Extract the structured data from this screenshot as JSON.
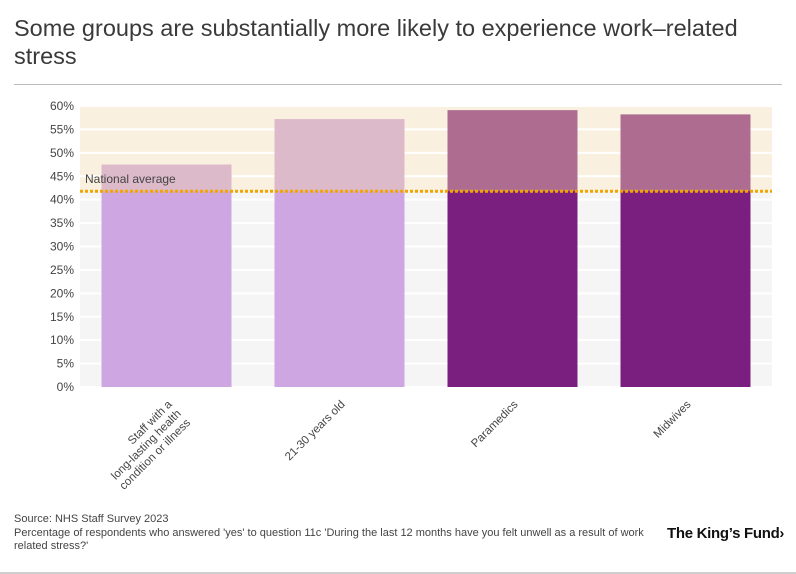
{
  "title": "Some groups are substantially more likely to experience work–related stress",
  "chart_data": {
    "type": "bar",
    "categories": [
      [
        "Staff with a",
        "long-lasting health",
        "condition or illness"
      ],
      [
        "21-30 years old"
      ],
      [
        "Paramedics"
      ],
      [
        "Midwives"
      ]
    ],
    "values": [
      47.5,
      57.2,
      59.1,
      58.2
    ],
    "ylim": [
      0,
      60
    ],
    "yticks": [
      "0%",
      "5%",
      "10%",
      "15%",
      "20%",
      "25%",
      "30%",
      "35%",
      "40%",
      "45%",
      "50%",
      "55%",
      "60%"
    ],
    "ytick_values": [
      0,
      5,
      10,
      15,
      20,
      25,
      30,
      35,
      40,
      45,
      50,
      55,
      60
    ],
    "reference_line": {
      "label": "National average",
      "value": 41.8,
      "color": "#f0a500"
    },
    "colors": [
      "#cda6e2",
      "#cda6e2",
      "#7a1f80",
      "#7a1f80"
    ],
    "above_average_overlay": "#f2d6a8",
    "band_color": "#faf0df",
    "grid_bg": "#f5f5f5",
    "grid": true
  },
  "footer": {
    "source": "Source: NHS Staff Survey 2023",
    "note": "Percentage of respondents who answered 'yes' to question 11c 'During the last 12 months have you felt unwell as a result of work related stress?'"
  },
  "brand": "The King’s Fund›"
}
